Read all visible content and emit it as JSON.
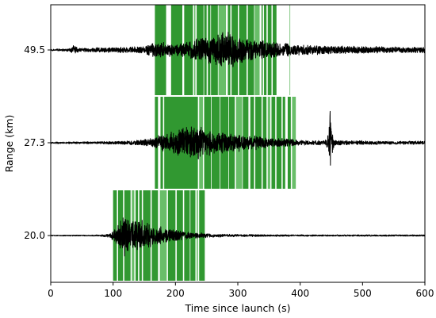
{
  "chart_data": {
    "type": "line",
    "title": "",
    "xlabel": "Time since launch (s)",
    "ylabel": "Range (km)",
    "xlim": [
      0,
      600
    ],
    "x_ticks": [
      "0",
      "100",
      "200",
      "300",
      "400",
      "500",
      "600"
    ],
    "x_tick_values": [
      0,
      100,
      200,
      300,
      400,
      500,
      600
    ],
    "y_tick_labels": [
      "49.5",
      "27.3",
      "20.0"
    ],
    "grid": false,
    "legend": "none",
    "colors": {
      "trace": "#000000",
      "highlight": "#1f8f1f",
      "highlight_light": "#5cb85c"
    },
    "series": [
      {
        "range_km": 49.5,
        "highlight_windows": [
          [
            167,
            185
          ],
          [
            193,
            211
          ],
          [
            214,
            228
          ],
          [
            230,
            232
          ],
          [
            234,
            245
          ],
          [
            246,
            250
          ],
          [
            252,
            256
          ],
          [
            257,
            268
          ],
          [
            269,
            281
          ],
          [
            284,
            288
          ],
          [
            290,
            300
          ],
          [
            302,
            314
          ],
          [
            316,
            326
          ],
          [
            327,
            335
          ],
          [
            338,
            340
          ],
          [
            342,
            346
          ],
          [
            348,
            354
          ],
          [
            356,
            362
          ],
          [
            383,
            384
          ]
        ],
        "envelope": [
          [
            0,
            0.02
          ],
          [
            30,
            0.04
          ],
          [
            35,
            0.12
          ],
          [
            45,
            0.05
          ],
          [
            80,
            0.06
          ],
          [
            120,
            0.07
          ],
          [
            150,
            0.09
          ],
          [
            170,
            0.22
          ],
          [
            185,
            0.18
          ],
          [
            200,
            0.14
          ],
          [
            220,
            0.2
          ],
          [
            240,
            0.32
          ],
          [
            260,
            0.35
          ],
          [
            280,
            0.48
          ],
          [
            295,
            0.4
          ],
          [
            310,
            0.3
          ],
          [
            330,
            0.22
          ],
          [
            350,
            0.25
          ],
          [
            370,
            0.18
          ],
          [
            390,
            0.14
          ],
          [
            420,
            0.12
          ],
          [
            460,
            0.1
          ],
          [
            500,
            0.09
          ],
          [
            540,
            0.08
          ],
          [
            600,
            0.07
          ]
        ]
      },
      {
        "range_km": 27.3,
        "highlight_windows": [
          [
            167,
            172
          ],
          [
            176,
            180
          ],
          [
            182,
            236
          ],
          [
            238,
            244
          ],
          [
            246,
            257
          ],
          [
            258,
            271
          ],
          [
            272,
            285
          ],
          [
            286,
            295
          ],
          [
            297,
            307
          ],
          [
            308,
            317
          ],
          [
            320,
            326
          ],
          [
            328,
            338
          ],
          [
            340,
            346
          ],
          [
            348,
            352
          ],
          [
            354,
            360
          ],
          [
            362,
            370
          ],
          [
            372,
            376
          ],
          [
            380,
            385
          ],
          [
            387,
            393
          ]
        ],
        "envelope": [
          [
            0,
            0.02
          ],
          [
            80,
            0.03
          ],
          [
            130,
            0.05
          ],
          [
            160,
            0.1
          ],
          [
            180,
            0.22
          ],
          [
            200,
            0.3
          ],
          [
            220,
            0.45
          ],
          [
            235,
            0.42
          ],
          [
            250,
            0.35
          ],
          [
            270,
            0.28
          ],
          [
            290,
            0.24
          ],
          [
            310,
            0.2
          ],
          [
            330,
            0.16
          ],
          [
            350,
            0.12
          ],
          [
            380,
            0.1
          ],
          [
            400,
            0.06
          ],
          [
            440,
            0.05
          ],
          [
            446,
            0.3
          ],
          [
            448,
            0.9
          ],
          [
            450,
            0.4
          ],
          [
            455,
            0.06
          ],
          [
            500,
            0.05
          ],
          [
            540,
            0.04
          ],
          [
            600,
            0.04
          ]
        ]
      },
      {
        "range_km": 20.0,
        "highlight_windows": [
          [
            100,
            106
          ],
          [
            108,
            116
          ],
          [
            118,
            128
          ],
          [
            130,
            134
          ],
          [
            136,
            140
          ],
          [
            142,
            146
          ],
          [
            148,
            160
          ],
          [
            162,
            172
          ],
          [
            175,
            186
          ],
          [
            188,
            200
          ],
          [
            202,
            212
          ],
          [
            214,
            223
          ],
          [
            224,
            232
          ],
          [
            234,
            236
          ],
          [
            238,
            247
          ]
        ],
        "envelope": [
          [
            0,
            0.01
          ],
          [
            80,
            0.02
          ],
          [
            95,
            0.05
          ],
          [
            105,
            0.22
          ],
          [
            115,
            0.55
          ],
          [
            125,
            0.5
          ],
          [
            135,
            0.45
          ],
          [
            150,
            0.35
          ],
          [
            170,
            0.26
          ],
          [
            190,
            0.18
          ],
          [
            210,
            0.12
          ],
          [
            230,
            0.08
          ],
          [
            260,
            0.05
          ],
          [
            300,
            0.03
          ],
          [
            400,
            0.02
          ],
          [
            600,
            0.02
          ]
        ]
      }
    ]
  }
}
